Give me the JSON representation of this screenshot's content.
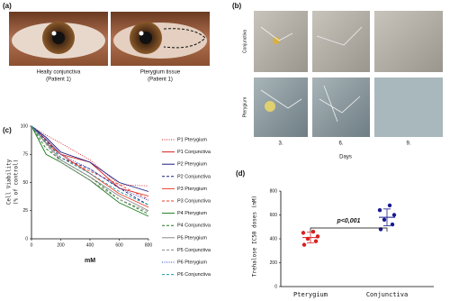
{
  "panel_labels": [
    "(a)",
    "(b)",
    "(c)",
    "(d)"
  ],
  "photos": {
    "captions": [
      [
        "Healty conjunctiva",
        "(Patient 1)"
      ],
      [
        "Pterygium tissue",
        "(Patient 1)"
      ]
    ]
  },
  "microscopy": {
    "rows": [
      "Conjunctiva",
      "Pterygium"
    ],
    "columns": [
      "3.",
      "6.",
      "9."
    ],
    "axis_label": "Days"
  },
  "chart_data": [
    {
      "type": "line",
      "x_label": "mM",
      "y_label": [
        "Cell Viability",
        "(% of control)"
      ],
      "x": [
        0,
        100,
        200,
        400,
        600,
        800
      ],
      "xlim": [
        0,
        800
      ],
      "xticks": [
        0,
        200,
        400,
        600,
        800
      ],
      "ylim": [
        0,
        100
      ],
      "yticks": [
        0,
        25,
        50,
        75,
        100
      ],
      "series": [
        {
          "name": "P1 Pterygium",
          "color": "#d62020",
          "dash": "dotted",
          "values": [
            100,
            92,
            85,
            70,
            48,
            47
          ]
        },
        {
          "name": "P1 Conjunctiva",
          "color": "#d62020",
          "dash": "solid",
          "values": [
            100,
            88,
            75,
            68,
            45,
            38
          ]
        },
        {
          "name": "P2 Pterygium",
          "color": "#1a1a80",
          "dash": "solid",
          "values": [
            100,
            90,
            77,
            68,
            50,
            42
          ]
        },
        {
          "name": "P2 Conjunctiva",
          "color": "#1a1a80",
          "dash": "dashed",
          "values": [
            100,
            88,
            72,
            62,
            45,
            30
          ]
        },
        {
          "name": "P3 Pterygium",
          "color": "#e8402a",
          "dash": "solid",
          "values": [
            100,
            85,
            75,
            58,
            40,
            28
          ]
        },
        {
          "name": "P3 Conjunctiva",
          "color": "#e8402a",
          "dash": "dashed",
          "values": [
            100,
            87,
            72,
            60,
            48,
            35
          ]
        },
        {
          "name": "P4 Pterygium",
          "color": "#1e7a1e",
          "dash": "solid",
          "values": [
            100,
            75,
            68,
            52,
            32,
            20
          ]
        },
        {
          "name": "P4 Conjunctiva",
          "color": "#1e7a1e",
          "dash": "dashed",
          "values": [
            100,
            80,
            70,
            55,
            35,
            22
          ]
        },
        {
          "name": "P5 Pterygium",
          "color": "#888888",
          "dash": "solid",
          "values": [
            100,
            85,
            70,
            55,
            38,
            25
          ]
        },
        {
          "name": "P5 Conjunctiva",
          "color": "#888888",
          "dash": "dashed",
          "values": [
            100,
            84,
            68,
            52,
            35,
            24
          ]
        },
        {
          "name": "P6 Pterygium",
          "color": "#2040c0",
          "dash": "dotted",
          "values": [
            100,
            88,
            75,
            62,
            45,
            34
          ]
        },
        {
          "name": "P6 Conjunctiva",
          "color": "#1a9aa8",
          "dash": "dashed",
          "values": [
            100,
            86,
            72,
            58,
            42,
            30
          ]
        }
      ]
    },
    {
      "type": "dot",
      "y_label": "Trehalose IC50 doses (mM)",
      "annotation": "p<0,001",
      "categories": [
        "Pterygium",
        "Conjunctiva"
      ],
      "colors": [
        "#d62020",
        "#1a1a90"
      ],
      "values": [
        [
          350,
          380,
          400,
          420,
          450,
          460
        ],
        [
          480,
          520,
          560,
          600,
          640,
          680
        ]
      ],
      "mean": [
        410,
        580
      ],
      "sd": [
        45,
        70
      ],
      "ylim": [
        0,
        800
      ],
      "yticks": [
        0,
        200,
        400,
        600,
        800
      ]
    }
  ]
}
